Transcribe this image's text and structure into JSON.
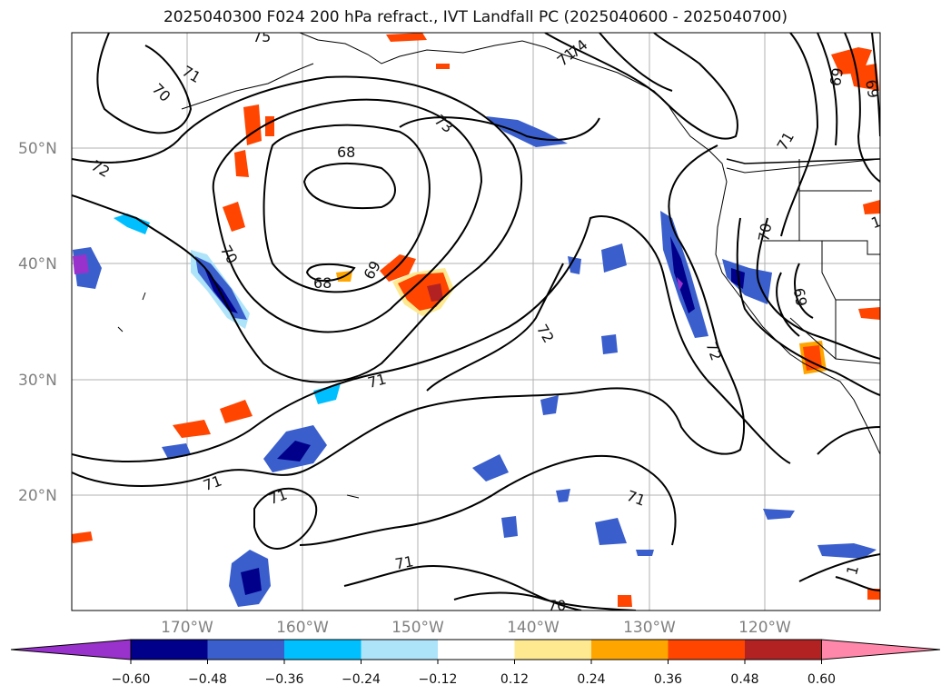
{
  "title": "2025040300 F024 200 hPa refract., IVT Landfall PC (2025040600 - 2025040700)",
  "axes": {
    "lat_labels": [
      "50°N",
      "40°N",
      "30°N",
      "20°N"
    ],
    "lon_labels": [
      "170°W",
      "160°W",
      "150°W",
      "140°W",
      "130°W",
      "120°W"
    ],
    "lat_range": [
      10,
      60
    ],
    "lon_range": [
      -180,
      -110
    ]
  },
  "contour_labels": [
    "68",
    "68",
    "69",
    "69",
    "69",
    "70",
    "70",
    "70",
    "70",
    "71",
    "71",
    "71",
    "71",
    "71",
    "71",
    "71",
    "71",
    "72",
    "72",
    "72",
    "73",
    "1",
    "10",
    "75",
    "74",
    "69"
  ],
  "colorbar": {
    "tick_labels": [
      "−0.60",
      "−0.48",
      "−0.36",
      "−0.24",
      "−0.12",
      "0.12",
      "0.24",
      "0.36",
      "0.48",
      "0.60"
    ],
    "colors": [
      "#9932cc",
      "#00008b",
      "#3a5fcd",
      "#00bfff",
      "#aee4fa",
      "#ffffff",
      "#fee990",
      "#ffa500",
      "#ff4500",
      "#b22222",
      "#ff88aa"
    ]
  }
}
